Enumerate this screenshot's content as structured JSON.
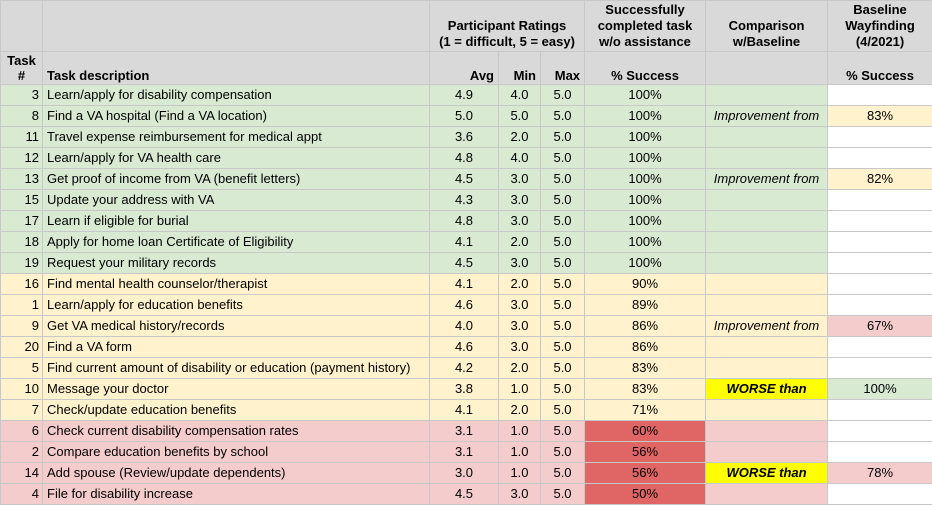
{
  "headers": {
    "task_num": "Task\n#",
    "task_desc": "Task description",
    "ratings_group": "Participant Ratings\n(1 = difficult, 5 = easy)",
    "success_group": "Successfully\ncompleted task\nw/o assistance",
    "comparison_group": "Comparison\nw/Baseline",
    "baseline_group": "Baseline\nWayfinding\n(4/2021)",
    "avg": "Avg",
    "min": "Min",
    "max": "Max",
    "pct_success": "% Success",
    "baseline_pct_success": "% Success"
  },
  "rows": [
    {
      "task": "3",
      "desc": "Learn/apply for disability compensation",
      "avg": "4.9",
      "min": "4.0",
      "max": "5.0",
      "pct": "100%",
      "cmp": "",
      "base": "",
      "band": "green"
    },
    {
      "task": "8",
      "desc": "Find a VA hospital (Find a VA location)",
      "avg": "5.0",
      "min": "5.0",
      "max": "5.0",
      "pct": "100%",
      "cmp": "Improvement from",
      "base": "83%",
      "band": "green"
    },
    {
      "task": "11",
      "desc": "Travel expense reimbursement for medical appt",
      "avg": "3.6",
      "min": "2.0",
      "max": "5.0",
      "pct": "100%",
      "cmp": "",
      "base": "",
      "band": "green"
    },
    {
      "task": "12",
      "desc": "Learn/apply for VA health care",
      "avg": "4.8",
      "min": "4.0",
      "max": "5.0",
      "pct": "100%",
      "cmp": "",
      "base": "",
      "band": "green"
    },
    {
      "task": "13",
      "desc": "Get proof of income from VA (benefit letters)",
      "avg": "4.5",
      "min": "3.0",
      "max": "5.0",
      "pct": "100%",
      "cmp": "Improvement from",
      "base": "82%",
      "band": "green"
    },
    {
      "task": "15",
      "desc": "Update your address with VA",
      "avg": "4.3",
      "min": "3.0",
      "max": "5.0",
      "pct": "100%",
      "cmp": "",
      "base": "",
      "band": "green"
    },
    {
      "task": "17",
      "desc": "Learn if eligible for burial",
      "avg": "4.8",
      "min": "3.0",
      "max": "5.0",
      "pct": "100%",
      "cmp": "",
      "base": "",
      "band": "green"
    },
    {
      "task": "18",
      "desc": "Apply for home loan Certificate of Eligibility",
      "avg": "4.1",
      "min": "2.0",
      "max": "5.0",
      "pct": "100%",
      "cmp": "",
      "base": "",
      "band": "green"
    },
    {
      "task": "19",
      "desc": "Request your military records",
      "avg": "4.5",
      "min": "3.0",
      "max": "5.0",
      "pct": "100%",
      "cmp": "",
      "base": "",
      "band": "green"
    },
    {
      "task": "16",
      "desc": "Find mental health counselor/therapist",
      "avg": "4.1",
      "min": "2.0",
      "max": "5.0",
      "pct": "90%",
      "cmp": "",
      "base": "",
      "band": "yellow"
    },
    {
      "task": "1",
      "desc": "Learn/apply for education benefits",
      "avg": "4.6",
      "min": "3.0",
      "max": "5.0",
      "pct": "89%",
      "cmp": "",
      "base": "",
      "band": "yellow"
    },
    {
      "task": "9",
      "desc": "Get VA medical history/records",
      "avg": "4.0",
      "min": "3.0",
      "max": "5.0",
      "pct": "86%",
      "cmp": "Improvement from",
      "base": "67%",
      "band": "yellow"
    },
    {
      "task": "20",
      "desc": "Find a VA form",
      "avg": "4.6",
      "min": "3.0",
      "max": "5.0",
      "pct": "86%",
      "cmp": "",
      "base": "",
      "band": "yellow"
    },
    {
      "task": "5",
      "desc": "Find current amount of disability or education (payment history)",
      "avg": "4.2",
      "min": "2.0",
      "max": "5.0",
      "pct": "83%",
      "cmp": "",
      "base": "",
      "band": "yellow"
    },
    {
      "task": "10",
      "desc": "Message your doctor",
      "avg": "3.8",
      "min": "1.0",
      "max": "5.0",
      "pct": "83%",
      "cmp": "WORSE than",
      "base": "100%",
      "band": "yellow"
    },
    {
      "task": "7",
      "desc": "Check/update education benefits",
      "avg": "4.1",
      "min": "2.0",
      "max": "5.0",
      "pct": "71%",
      "cmp": "",
      "base": "",
      "band": "yellow"
    },
    {
      "task": "6",
      "desc": "Check current disability compensation rates",
      "avg": "3.1",
      "min": "1.0",
      "max": "5.0",
      "pct": "60%",
      "cmp": "",
      "base": "",
      "band": "red"
    },
    {
      "task": "2",
      "desc": "Compare education benefits by school",
      "avg": "3.1",
      "min": "1.0",
      "max": "5.0",
      "pct": "56%",
      "cmp": "",
      "base": "",
      "band": "red"
    },
    {
      "task": "14",
      "desc": "Add spouse (Review/update dependents)",
      "avg": "3.0",
      "min": "1.0",
      "max": "5.0",
      "pct": "56%",
      "cmp": "WORSE than",
      "base": "78%",
      "band": "red"
    },
    {
      "task": "4",
      "desc": "File for disability increase",
      "avg": "4.5",
      "min": "3.0",
      "max": "5.0",
      "pct": "50%",
      "cmp": "",
      "base": "",
      "band": "red"
    }
  ]
}
